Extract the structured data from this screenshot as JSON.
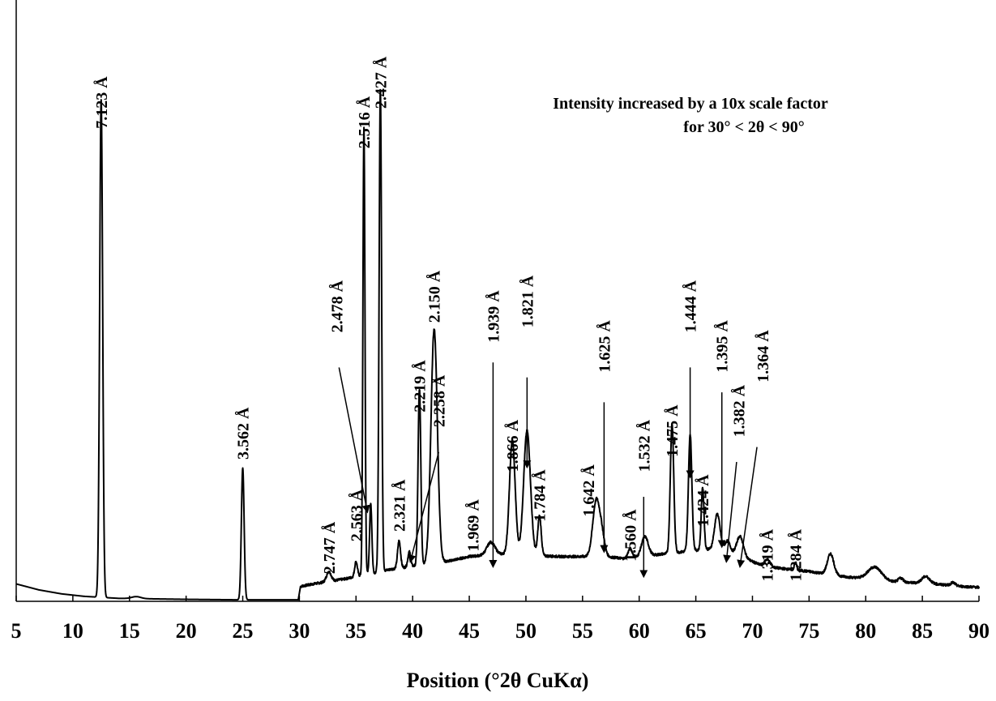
{
  "chart_data": {
    "type": "line",
    "title": "",
    "xlabel": "Position (°2θ CuKα)",
    "ylabel": "",
    "xlim": [
      5,
      90
    ],
    "ylim": [
      0,
      100
    ],
    "x_ticks": [
      "5",
      "10",
      "15",
      "20",
      "25",
      "30",
      "35",
      "40",
      "45",
      "50",
      "55",
      "60",
      "65",
      "70",
      "75",
      "80",
      "85",
      "90"
    ],
    "grid": false,
    "legend": "none",
    "annotation_lines": [
      "Intensity increased by a 10x scale factor",
      "for 30° < 2θ < 90°"
    ],
    "series": [
      {
        "background_points": [
          [
            5,
            3.5
          ],
          [
            7,
            2.3
          ],
          [
            9,
            1.5
          ],
          [
            11,
            1.0
          ],
          [
            14,
            0.6
          ],
          [
            20,
            0.4
          ],
          [
            24.8,
            0.3
          ],
          [
            29.9,
            0.3
          ],
          [
            30.1,
            3.0
          ],
          [
            31.5,
            3.6
          ],
          [
            34,
            4.5
          ],
          [
            38.2,
            6.5
          ],
          [
            43,
            8.0
          ],
          [
            45,
            9.0
          ],
          [
            47.5,
            9.5
          ],
          [
            53,
            9.0
          ],
          [
            57,
            9.0
          ],
          [
            59,
            8.5
          ],
          [
            62,
            9.5
          ],
          [
            66,
            10.5
          ],
          [
            69,
            9.0
          ],
          [
            71,
            7.0
          ],
          [
            75,
            6.0
          ],
          [
            78,
            5.0
          ],
          [
            82,
            4.0
          ],
          [
            86,
            3.5
          ],
          [
            88.5,
            3.0
          ],
          [
            90,
            2.8
          ]
        ],
        "peaks": [
          {
            "x": 12.5,
            "h": 100,
            "w": 0.13
          },
          {
            "x": 15.6,
            "h": 0.4,
            "w": 0.4
          },
          {
            "x": 25.0,
            "h": 26.5,
            "w": 0.12
          },
          {
            "x": 32.6,
            "h": 2.0,
            "w": 0.2
          },
          {
            "x": 35.0,
            "h": 3.0,
            "w": 0.12
          },
          {
            "x": 35.7,
            "h": 90,
            "w": 0.09
          },
          {
            "x": 36.3,
            "h": 14,
            "w": 0.1
          },
          {
            "x": 37.15,
            "h": 97,
            "w": 0.11
          },
          {
            "x": 38.8,
            "h": 5.5,
            "w": 0.13
          },
          {
            "x": 39.7,
            "h": 3.0,
            "w": 0.12
          },
          {
            "x": 40.6,
            "h": 35.5,
            "w": 0.12
          },
          {
            "x": 41.9,
            "h": 47,
            "w": 0.28
          },
          {
            "x": 46.9,
            "h": 2.5,
            "w": 0.35
          },
          {
            "x": 48.8,
            "h": 23,
            "w": 0.25
          },
          {
            "x": 50.1,
            "h": 25,
            "w": 0.3
          },
          {
            "x": 51.2,
            "h": 8,
            "w": 0.15
          },
          {
            "x": 56.2,
            "h": 11,
            "w": 0.3
          },
          {
            "x": 56.7,
            "h": 4,
            "w": 0.25
          },
          {
            "x": 59.2,
            "h": 2,
            "w": 0.2
          },
          {
            "x": 60.5,
            "h": 4.0,
            "w": 0.3
          },
          {
            "x": 62.9,
            "h": 26,
            "w": 0.15
          },
          {
            "x": 64.5,
            "h": 23.5,
            "w": 0.15
          },
          {
            "x": 65.6,
            "h": 12.5,
            "w": 0.12
          },
          {
            "x": 66.9,
            "h": 7.5,
            "w": 0.25
          },
          {
            "x": 67.8,
            "h": 2.5,
            "w": 0.25
          },
          {
            "x": 68.9,
            "h": 4,
            "w": 0.3
          },
          {
            "x": 71.3,
            "h": 1.5,
            "w": 0.25
          },
          {
            "x": 73.8,
            "h": 1.5,
            "w": 0.1
          },
          {
            "x": 76.9,
            "h": 4.2,
            "w": 0.28
          },
          {
            "x": 80.8,
            "h": 2.6,
            "w": 0.6
          },
          {
            "x": 83.1,
            "h": 0.8,
            "w": 0.22
          },
          {
            "x": 85.3,
            "h": 1.4,
            "w": 0.35
          },
          {
            "x": 87.7,
            "h": 0.6,
            "w": 0.2
          }
        ]
      }
    ],
    "peak_labels": [
      {
        "text": "7.123 Å",
        "x": 12.5,
        "y": 95,
        "arrow": false
      },
      {
        "text": "3.562 Å",
        "x": 25.0,
        "y": 28.5,
        "arrow": false
      },
      {
        "text": "2.747 Å",
        "x": 32.6,
        "y": 5.5,
        "arrow": false
      },
      {
        "text": "2.563 Å",
        "x": 35.0,
        "y": 12,
        "arrow": false
      },
      {
        "text": "2.516 Å",
        "x": 35.7,
        "y": 91,
        "arrow": false
      },
      {
        "text": "2.478 Å",
        "x": 33.3,
        "y": 54,
        "arrow": true,
        "ax": 33.5,
        "ay": 47,
        "tx": 36.0,
        "ty": 18
      },
      {
        "text": "2.427 Å",
        "x": 37.15,
        "y": 99,
        "arrow": false
      },
      {
        "text": "2.321 Å",
        "x": 38.8,
        "y": 14,
        "arrow": false
      },
      {
        "text": "2.258 Å",
        "x": 42.3,
        "y": 35,
        "arrow": true,
        "ax": 42.3,
        "ay": 30,
        "tx": 39.8,
        "ty": 8
      },
      {
        "text": "2.219 Å",
        "x": 40.6,
        "y": 38,
        "arrow": false
      },
      {
        "text": "2.150 Å",
        "x": 41.9,
        "y": 56,
        "arrow": false
      },
      {
        "text": "1.969 Å",
        "x": 45.3,
        "y": 10,
        "arrow": false
      },
      {
        "text": "1.939 Å",
        "x": 47.1,
        "y": 52,
        "arrow": true,
        "ax": 47.1,
        "ay": 48,
        "tx": 47.1,
        "ty": 7
      },
      {
        "text": "1.866 Å",
        "x": 48.8,
        "y": 26,
        "arrow": false
      },
      {
        "text": "1.821 Å",
        "x": 50.1,
        "y": 55,
        "arrow": true,
        "ax": 50.1,
        "ay": 45,
        "tx": 50.1,
        "ty": 27
      },
      {
        "text": "1.784 Å",
        "x": 51.2,
        "y": 16,
        "arrow": false
      },
      {
        "text": "1.642 Å",
        "x": 55.5,
        "y": 17,
        "arrow": false
      },
      {
        "text": "1.625 Å",
        "x": 56.9,
        "y": 46,
        "arrow": true,
        "ax": 56.9,
        "ay": 40,
        "tx": 56.9,
        "ty": 10
      },
      {
        "text": "1.560 Å",
        "x": 59.2,
        "y": 8,
        "arrow": false
      },
      {
        "text": "1.532 Å",
        "x": 60.4,
        "y": 26,
        "arrow": true,
        "ax": 60.4,
        "ay": 21,
        "tx": 60.4,
        "ty": 5
      },
      {
        "text": "1.475 Å",
        "x": 62.9,
        "y": 29,
        "arrow": false
      },
      {
        "text": "1.444 Å",
        "x": 64.5,
        "y": 54,
        "arrow": true,
        "ax": 64.5,
        "ay": 47,
        "tx": 64.5,
        "ty": 25
      },
      {
        "text": "1.424 Å",
        "x": 65.6,
        "y": 15,
        "arrow": false
      },
      {
        "text": "1.395 Å",
        "x": 67.3,
        "y": 46,
        "arrow": true,
        "ax": 67.3,
        "ay": 42,
        "tx": 67.3,
        "ty": 11
      },
      {
        "text": "1.382 Å",
        "x": 68.8,
        "y": 33,
        "arrow": true,
        "ax": 68.6,
        "ay": 28,
        "tx": 67.7,
        "ty": 8
      },
      {
        "text": "1.364 Å",
        "x": 70.9,
        "y": 44,
        "arrow": true,
        "ax": 70.4,
        "ay": 31,
        "tx": 68.9,
        "ty": 7
      },
      {
        "text": "1.319 Å",
        "x": 71.3,
        "y": 4,
        "arrow": false
      },
      {
        "text": "1.284 Å",
        "x": 73.8,
        "y": 4,
        "arrow": false
      }
    ]
  }
}
